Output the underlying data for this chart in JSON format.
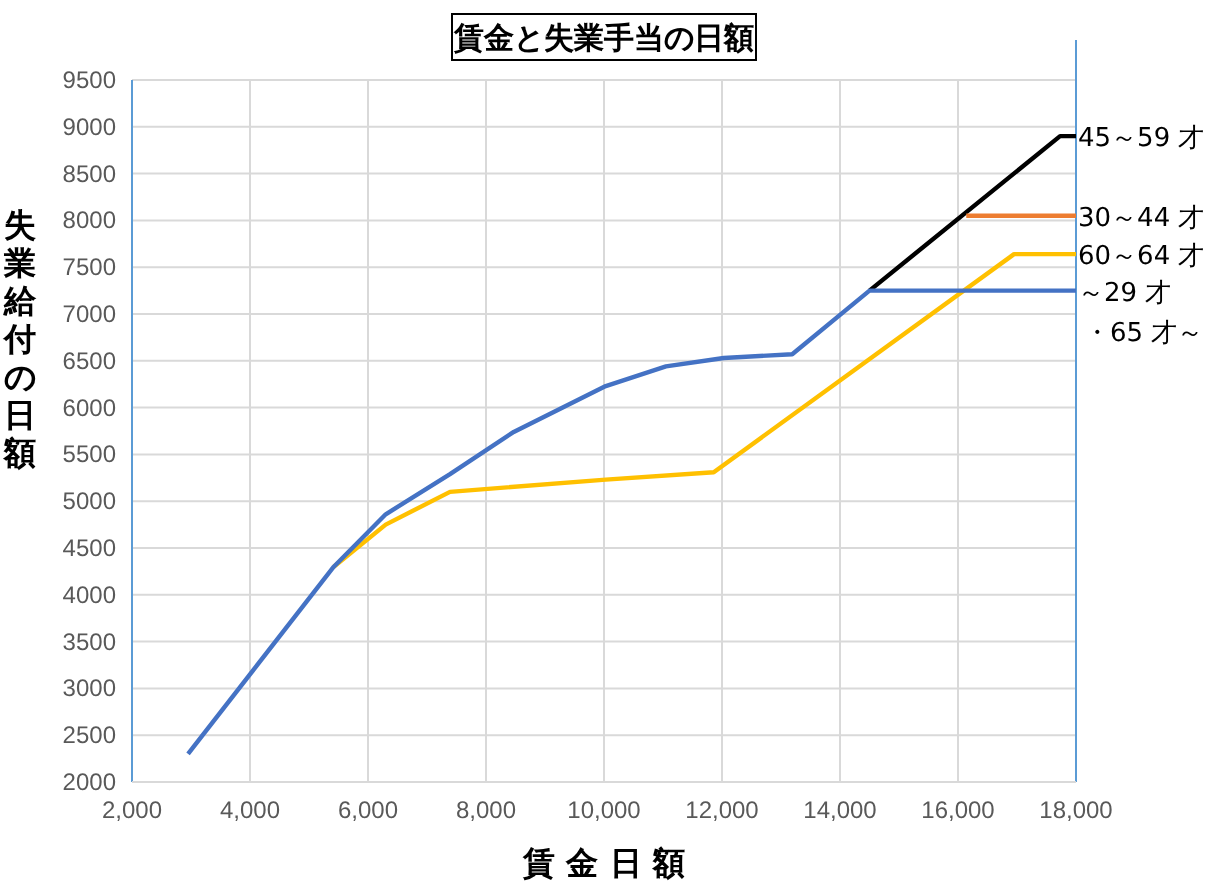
{
  "chart_data": {
    "type": "line",
    "title": "賃金と失業手当の日額",
    "xlabel": "賃 金 日 額",
    "ylabel": "失業給付の日額",
    "xlim": [
      2000,
      18000
    ],
    "ylim": [
      2000,
      9500
    ],
    "xticks": [
      {
        "value": 2000,
        "label": "2,000"
      },
      {
        "value": 4000,
        "label": "4,000"
      },
      {
        "value": 6000,
        "label": "6,000"
      },
      {
        "value": 8000,
        "label": "8,000"
      },
      {
        "value": 10000,
        "label": "10,000"
      },
      {
        "value": 12000,
        "label": "12,000"
      },
      {
        "value": 14000,
        "label": "14,000"
      },
      {
        "value": 16000,
        "label": "16,000"
      },
      {
        "value": 18000,
        "label": "18,000"
      }
    ],
    "yticks": [
      2000,
      2500,
      3000,
      3500,
      4000,
      4500,
      5000,
      5500,
      6000,
      6500,
      7000,
      7500,
      8000,
      8500,
      9000,
      9500
    ],
    "grid": true,
    "series": [
      {
        "name": "60～64 才",
        "color": "#ffc000",
        "x": [
          5420,
          6300,
          7390,
          10030,
          11860,
          16950,
          18000
        ],
        "values": [
          4300,
          4750,
          5100,
          5230,
          5310,
          7640,
          7640
        ]
      },
      {
        "name": "45～59 才",
        "color": "#000000",
        "x": [
          14500,
          17730,
          18000
        ],
        "values": [
          7250,
          8900,
          8900
        ]
      },
      {
        "name": "30～44 才",
        "color": "#ed7d31",
        "x": [
          16140,
          18000
        ],
        "values": [
          8050,
          8050
        ]
      },
      {
        "name": "～29 才・65 才～",
        "color": "#4472c4",
        "x": [
          2950,
          5420,
          6300,
          7390,
          8470,
          10030,
          11050,
          12030,
          13190,
          14500,
          18000
        ],
        "values": [
          2300,
          4300,
          4860,
          5290,
          5740,
          6230,
          6440,
          6530,
          6570,
          7250,
          7250
        ]
      }
    ]
  }
}
